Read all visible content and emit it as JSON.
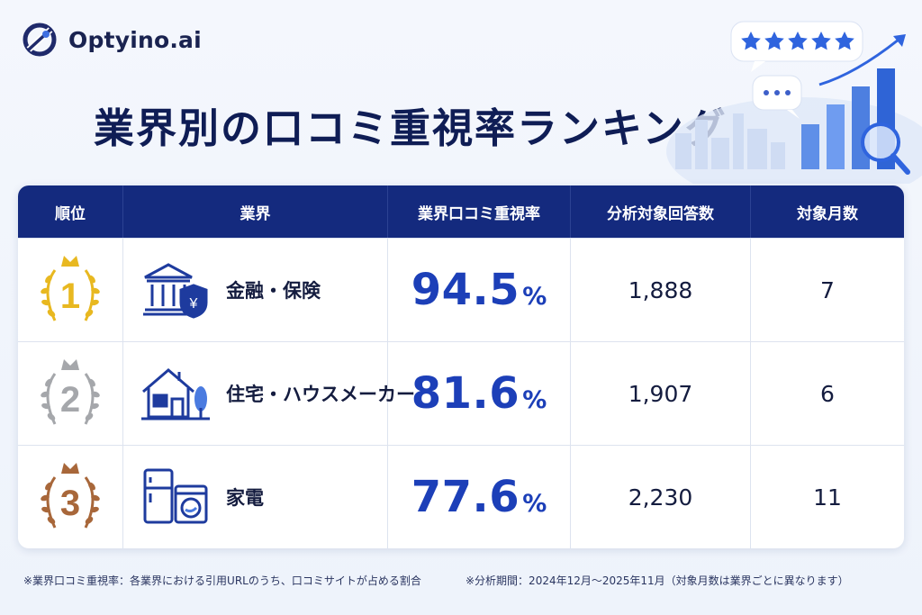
{
  "brand": {
    "name": "Optyino.ai",
    "icon": "logo-icon"
  },
  "title": "業界別の口コミ重視率ランキング",
  "hero": {
    "rating_stars": 5,
    "icons": [
      "star-icon",
      "speech-bubble-icon",
      "bar-chart-icon",
      "magnifier-icon",
      "trend-arrow-icon"
    ]
  },
  "table": {
    "headers": [
      "順位",
      "業界",
      "業界口コミ重視率",
      "分析対象回答数",
      "対象月数"
    ],
    "rows": [
      {
        "rank": "1",
        "medal_color": "#e8b820",
        "medal_icon": "gold-medal-icon",
        "industry_icon": "bank-icon",
        "industry": "金融・保険",
        "rate": "94.5",
        "pct": "%",
        "responses": "1,888",
        "months": "7"
      },
      {
        "rank": "2",
        "medal_color": "#a5a7ab",
        "medal_icon": "silver-medal-icon",
        "industry_icon": "house-icon",
        "industry": "住宅・ハウスメーカー",
        "rate": "81.6",
        "pct": "%",
        "responses": "1,907",
        "months": "6"
      },
      {
        "rank": "3",
        "medal_color": "#a8673a",
        "medal_icon": "bronze-medal-icon",
        "industry_icon": "appliance-icon",
        "industry": "家電",
        "rate": "77.6",
        "pct": "%",
        "responses": "2,230",
        "months": "11"
      }
    ]
  },
  "footnotes": {
    "definition": "※業界口コミ重視率：各業界における引用URLのうち、口コミサイトが占める割合",
    "period": "※分析期間：2024年12月〜2025年11月（対象月数は業界ごとに異なります）"
  }
}
